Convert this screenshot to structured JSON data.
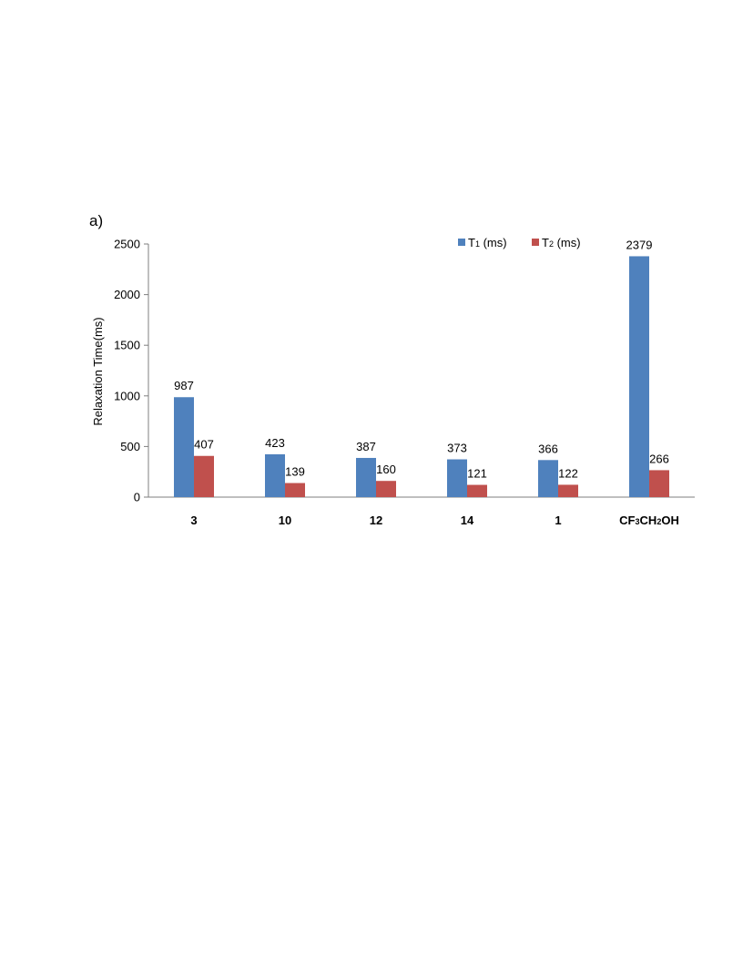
{
  "panel_label": "a)",
  "chart_data": {
    "type": "bar",
    "title": "",
    "xlabel": "",
    "ylabel": "Relaxation Time(ms)",
    "ylim": [
      0,
      2500
    ],
    "yticks": [
      0,
      500,
      1000,
      1500,
      2000,
      2500
    ],
    "ytick_labels": [
      "0",
      "500",
      "1000",
      "1500",
      "2000",
      "2500"
    ],
    "categories": [
      {
        "base": "3",
        "subs": []
      },
      {
        "base": "10",
        "subs": []
      },
      {
        "base": "12",
        "subs": []
      },
      {
        "base": "14",
        "subs": []
      },
      {
        "base": "1",
        "subs": []
      },
      {
        "base": "CF3CH2OH",
        "subs": [
          {
            "pre": "CF",
            "sub": "3"
          },
          {
            "pre": "CH",
            "sub": "2"
          },
          {
            "pre": "OH",
            "sub": ""
          }
        ]
      }
    ],
    "series": [
      {
        "name": "T1 (ms)",
        "legend_main": "T",
        "legend_sub": "1",
        "legend_rest": " (ms)",
        "color": "#4F81BD",
        "values": [
          987,
          423,
          387,
          373,
          366,
          2379
        ]
      },
      {
        "name": "T2 (ms)",
        "legend_main": "T",
        "legend_sub": "2",
        "legend_rest": " (ms)",
        "color": "#C0504D",
        "values": [
          407,
          139,
          160,
          121,
          122,
          266
        ]
      }
    ],
    "grid": false,
    "legend_position": "top-right",
    "data_labels": true
  }
}
